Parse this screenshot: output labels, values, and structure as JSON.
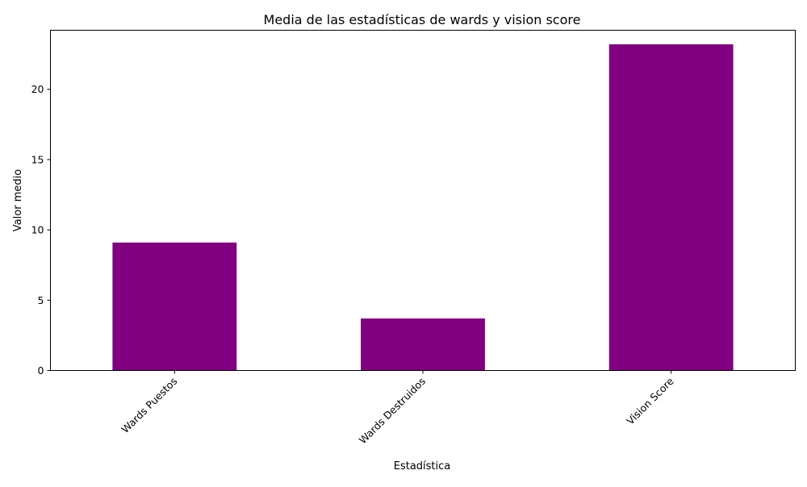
{
  "chart_data": {
    "type": "bar",
    "title": "Media de las estadísticas de wards y vision score",
    "xlabel": "Estadística",
    "ylabel": "Valor medio",
    "categories": [
      "Wards Puestos",
      "Wards Destruidos",
      "Vision Score"
    ],
    "values": [
      9.1,
      3.7,
      23.2
    ],
    "ylim": [
      0,
      24.2
    ],
    "yticks": [
      0,
      5,
      10,
      15,
      20
    ],
    "x_tick_rotation": 45,
    "bar_color": "#800080",
    "grid": false,
    "legend": false
  }
}
